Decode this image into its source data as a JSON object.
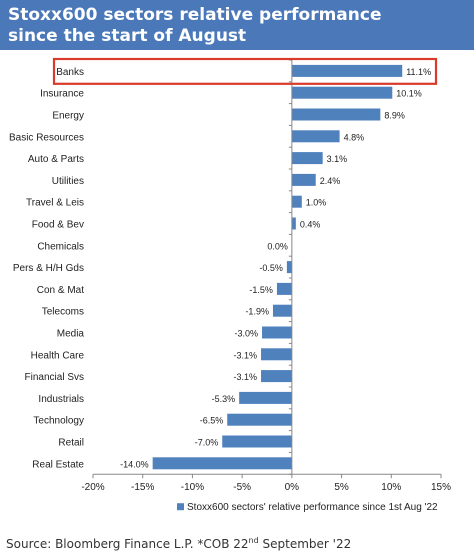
{
  "header": {
    "title_line1": "Stoxx600 sectors relative performance",
    "title_line2": "since the start of August"
  },
  "footer": {
    "prefix": "Source: Bloomberg Finance L.P. *COB 22",
    "sup": "nd",
    "suffix": " September '22"
  },
  "chart_data": {
    "type": "bar",
    "orientation": "horizontal",
    "title": "Stoxx600 sectors relative performance since the start of August",
    "categories": [
      "Banks",
      "Insurance",
      "Energy",
      "Basic Resources",
      "Auto & Parts",
      "Utilities",
      "Travel & Leis",
      "Food & Bev",
      "Chemicals",
      "Pers & H/H Gds",
      "Con & Mat",
      "Telecoms",
      "Media",
      "Health Care",
      "Financial Svs",
      "Industrials",
      "Technology",
      "Retail",
      "Real Estate"
    ],
    "series": [
      {
        "name": "Stoxx600 sectors' relative performance since 1st Aug '22",
        "values": [
          11.1,
          10.1,
          8.9,
          4.8,
          3.1,
          2.4,
          1.0,
          0.4,
          0.0,
          -0.5,
          -1.5,
          -1.9,
          -3.0,
          -3.1,
          -3.1,
          -5.3,
          -6.5,
          -7.0,
          -14.0
        ],
        "labels": [
          "11.1%",
          "10.1%",
          "8.9%",
          "4.8%",
          "3.1%",
          "2.4%",
          "1.0%",
          "0.4%",
          "0.0%",
          "-0.5%",
          "-1.5%",
          "-1.9%",
          "-3.0%",
          "-3.1%",
          "-3.1%",
          "-5.3%",
          "-6.5%",
          "-7.0%",
          "-14.0%"
        ]
      }
    ],
    "xlim": [
      -20,
      15
    ],
    "xticks": [
      -20,
      -15,
      -10,
      -5,
      0,
      5,
      10,
      15
    ],
    "xtick_labels": [
      "-20%",
      "-15%",
      "-10%",
      "-5%",
      "0%",
      "5%",
      "10%",
      "15%"
    ],
    "legend_position": "bottom-right",
    "highlighted_category": "Banks",
    "colors": {
      "bar": "#4f81bd",
      "highlight": "#d93a2b",
      "banner": "#4a78b8"
    },
    "grid": false
  }
}
